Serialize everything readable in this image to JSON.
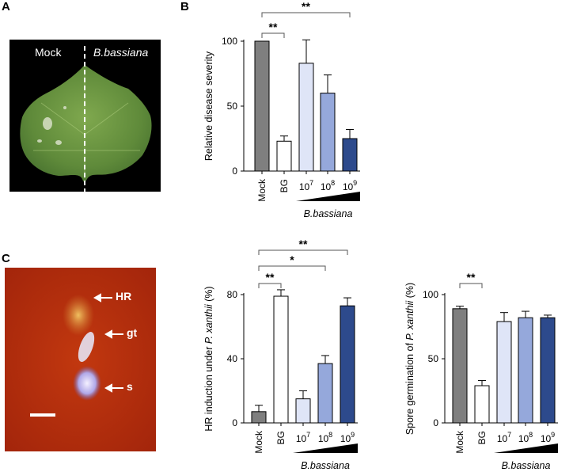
{
  "panels": {
    "a": {
      "letter": "A",
      "left_label": "Mock",
      "right_label": "B.bassiana"
    },
    "b": {
      "letter": "B"
    },
    "c": {
      "letter": "C",
      "arrows": [
        "HR",
        "gt",
        "s"
      ]
    }
  },
  "palette": {
    "mock": "#7f7f7f",
    "bg": "#ffffff",
    "e7": "#dfe5f7",
    "e8": "#95a8db",
    "e9": "#2d4a8c",
    "leaf_bg": "#000000",
    "micro_bg": "#b52a0c"
  },
  "chart_data": [
    {
      "type": "bar",
      "ylabel": "Relative disease severity",
      "xlabel": "B.bassiana",
      "categories": [
        "Mock",
        "BG",
        "10^7",
        "10^8",
        "10^9"
      ],
      "values": [
        100,
        23,
        83,
        60,
        25
      ],
      "errors": [
        0,
        4,
        18,
        14,
        7
      ],
      "ylim": [
        0,
        100
      ],
      "yticks": [
        0,
        50,
        100
      ],
      "significance": [
        {
          "from": 0,
          "to": 1,
          "label": "**"
        },
        {
          "from": 0,
          "to": 4,
          "label": "**"
        }
      ]
    },
    {
      "type": "bar",
      "ylabel": "HR induction under P. xanthii (%)",
      "ylabel_plain": "HR induction under ",
      "ylabel_italic": "P. xanthii",
      "ylabel_tail": " (%)",
      "xlabel": "B.bassiana",
      "categories": [
        "Mock",
        "BG",
        "10^7",
        "10^8",
        "10^9"
      ],
      "values": [
        7,
        79,
        15,
        37,
        73
      ],
      "errors": [
        4,
        4,
        5,
        5,
        5
      ],
      "ylim": [
        0,
        80
      ],
      "yticks": [
        0,
        40,
        80
      ],
      "significance": [
        {
          "from": 0,
          "to": 1,
          "label": "**"
        },
        {
          "from": 0,
          "to": 3,
          "label": "*"
        },
        {
          "from": 0,
          "to": 4,
          "label": "**"
        }
      ]
    },
    {
      "type": "bar",
      "ylabel": "Spore germination of P. xanthii (%)",
      "ylabel_plain": "Spore germination of ",
      "ylabel_italic": "P. xanthii",
      "ylabel_tail": " (%)",
      "xlabel": "B.bassiana",
      "categories": [
        "Mock",
        "BG",
        "10^7",
        "10^8",
        "10^9"
      ],
      "values": [
        89,
        29,
        79,
        82,
        82
      ],
      "errors": [
        2,
        4,
        7,
        5,
        2
      ],
      "ylim": [
        0,
        100
      ],
      "yticks": [
        0,
        50,
        100
      ],
      "significance": [
        {
          "from": 0,
          "to": 1,
          "label": "**"
        }
      ]
    }
  ]
}
